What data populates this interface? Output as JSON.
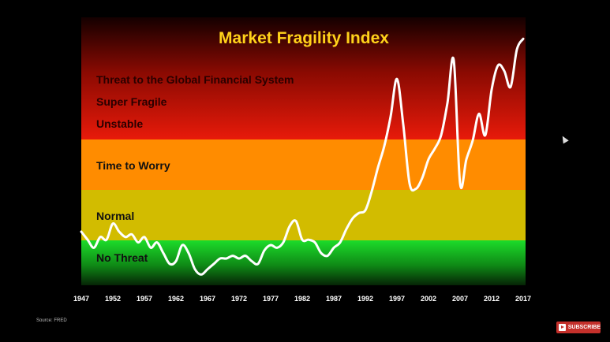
{
  "chart_data": {
    "type": "line",
    "title": "Market Fragility Index",
    "xlabel": "",
    "ylabel": "",
    "xlim": [
      1947,
      2017
    ],
    "ylim": [
      0,
      100
    ],
    "x_ticks": [
      "1947",
      "1952",
      "1957",
      "1962",
      "1967",
      "1972",
      "1977",
      "1982",
      "1987",
      "1992",
      "1997",
      "2002",
      "2007",
      "2012",
      "2017"
    ],
    "zones": [
      {
        "label": "No Threat",
        "from": 0,
        "to": 19,
        "color_top": "#1cdc2a",
        "color_bottom": "#072a08"
      },
      {
        "label": "Normal",
        "from": 19,
        "to": 38,
        "color_top": "#d8c000",
        "color_bottom": "#c8b400"
      },
      {
        "label": "Time to Worry",
        "from": 38,
        "to": 57,
        "color_top": "#ff8800",
        "color_bottom": "#ff9000"
      }
    ],
    "danger_zone": {
      "from": 57,
      "to": 100,
      "color_top": "#140000",
      "color_bottom": "#e81a0a"
    },
    "danger_labels": [
      "Threat to the Global Financial System",
      "Super Fragile",
      "Unstable"
    ],
    "series": [
      {
        "x": [
          1947,
          1948,
          1949,
          1950,
          1951,
          1952,
          1953,
          1954,
          1955,
          1956,
          1957,
          1958,
          1959,
          1960,
          1961,
          1962,
          1963,
          1964,
          1965,
          1966,
          1967,
          1968,
          1969,
          1970,
          1971,
          1972,
          1973,
          1974,
          1975,
          1976,
          1977,
          1978,
          1979,
          1980,
          1981,
          1982,
          1983,
          1984,
          1985,
          1986,
          1987,
          1988,
          1989,
          1990,
          1991,
          1992,
          1993,
          1994,
          1995,
          1996,
          1997,
          1998,
          1999,
          2000,
          2001,
          2002,
          2003,
          2004,
          2005,
          2006,
          2007,
          2008,
          2009,
          2010,
          2011,
          2012,
          2013,
          2014,
          2015,
          2016,
          2017
        ],
        "y": [
          20,
          17,
          14,
          18,
          17,
          23,
          20,
          18,
          19,
          16,
          18,
          14,
          16,
          12,
          8,
          9,
          15,
          12,
          6,
          4,
          6,
          8,
          10,
          10,
          11,
          10,
          11,
          9,
          8,
          13,
          15,
          14,
          16,
          22,
          24,
          17,
          17,
          16,
          12,
          11,
          14,
          16,
          21,
          25,
          27,
          28,
          35,
          44,
          52,
          63,
          77,
          60,
          38,
          36,
          40,
          47,
          51,
          56,
          68,
          84,
          38,
          47,
          54,
          64,
          56,
          73,
          82,
          80,
          74,
          88,
          92
        ]
      }
    ]
  },
  "source_label": "Source: FRED",
  "subscribe_label": "SUBSCRIBE"
}
